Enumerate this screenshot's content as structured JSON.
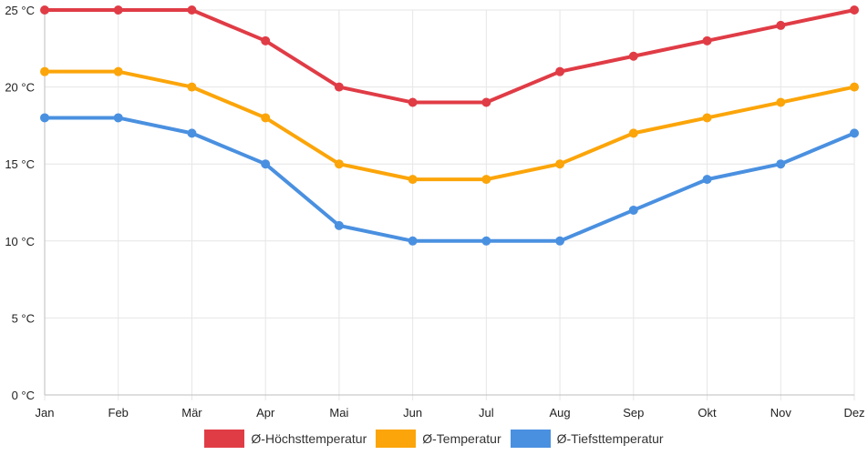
{
  "chart_data": {
    "type": "line",
    "categories": [
      "Jan",
      "Feb",
      "Mär",
      "Apr",
      "Mai",
      "Jun",
      "Jul",
      "Aug",
      "Sep",
      "Okt",
      "Nov",
      "Dez"
    ],
    "series": [
      {
        "name": "Ø-Höchsttemperatur",
        "color": "#e03c46",
        "values": [
          25,
          25,
          25,
          23,
          20,
          19,
          19,
          21,
          22,
          23,
          24,
          25
        ]
      },
      {
        "name": "Ø-Temperatur",
        "color": "#fba50a",
        "values": [
          21,
          21,
          20,
          18,
          15,
          14,
          14,
          15,
          17,
          18,
          19,
          20
        ]
      },
      {
        "name": "Ø-Tiefsttemperatur",
        "color": "#4a90e0",
        "values": [
          18,
          18,
          17,
          15,
          11,
          10,
          10,
          10,
          12,
          14,
          15,
          17
        ]
      }
    ],
    "ylim": [
      0,
      25
    ],
    "yticks": [
      "0 °C",
      "5 °C",
      "10 °C",
      "15 °C",
      "20 °C",
      "25 °C"
    ],
    "grid": true,
    "legend_position": "bottom"
  }
}
